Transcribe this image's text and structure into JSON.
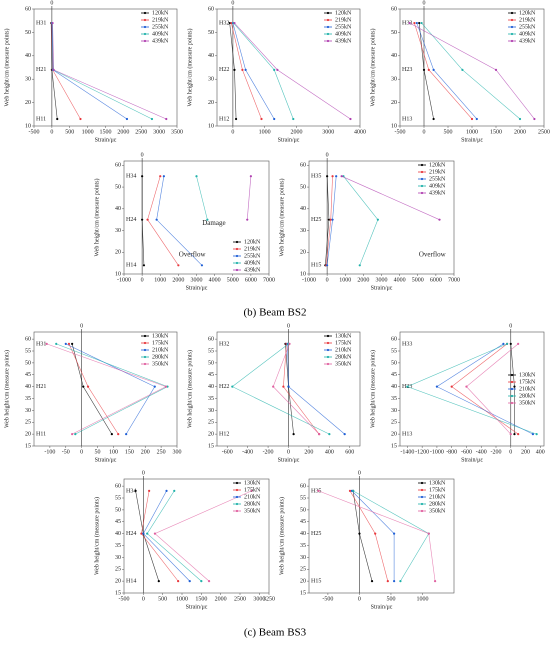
{
  "captions": [
    "(b) Beam BS2",
    "(c) Beam BS3"
  ],
  "chart_data": [
    {
      "type": "line",
      "xlabel": "Strain/με",
      "ylabel": "Web height/cm (measure points)",
      "xlim": [
        -500,
        3500
      ],
      "xticks": [
        -500,
        0,
        500,
        1000,
        1500,
        2000,
        2500,
        3000,
        3500
      ],
      "ylim": [
        10,
        60
      ],
      "yticks": [
        10,
        20,
        30,
        40,
        50,
        60
      ],
      "zero_line": {
        "value": 0,
        "label": "0"
      },
      "y": [
        13,
        34,
        54
      ],
      "point_labels": [
        "H11",
        "H21",
        "H31"
      ],
      "legend": "upper right",
      "annotations": [],
      "series": [
        {
          "name": "120kN",
          "color": "#000000",
          "x": [
            150,
            0,
            -20
          ]
        },
        {
          "name": "219kN",
          "color": "#e8383d",
          "x": [
            800,
            20,
            -10
          ]
        },
        {
          "name": "255kN",
          "color": "#1f5fd6",
          "x": [
            2100,
            30,
            0
          ]
        },
        {
          "name": "409kN",
          "color": "#20b2aa",
          "x": [
            2800,
            40,
            10
          ]
        },
        {
          "name": "439kN",
          "color": "#b040b0",
          "x": [
            3200,
            50,
            20
          ]
        }
      ]
    },
    {
      "type": "line",
      "xlabel": "Strain/με",
      "ylabel": "Web height/cm (measure points)",
      "xlim": [
        -500,
        4000
      ],
      "xticks": [
        0,
        1000,
        2000,
        3000,
        4000
      ],
      "ylim": [
        10,
        60
      ],
      "yticks": [
        10,
        20,
        30,
        40,
        50,
        60
      ],
      "zero_line": {
        "value": 0,
        "label": "0"
      },
      "y": [
        13,
        34,
        54
      ],
      "point_labels": [
        "H12",
        "H22",
        "H32"
      ],
      "legend": "upper right",
      "annotations": [],
      "series": [
        {
          "name": "120kN",
          "color": "#000000",
          "x": [
            100,
            50,
            -100
          ]
        },
        {
          "name": "219kN",
          "color": "#e8383d",
          "x": [
            900,
            300,
            -50
          ]
        },
        {
          "name": "255kN",
          "color": "#1f5fd6",
          "x": [
            1300,
            400,
            0
          ]
        },
        {
          "name": "409kN",
          "color": "#20b2aa",
          "x": [
            1900,
            1300,
            20
          ]
        },
        {
          "name": "439kN",
          "color": "#b040b0",
          "x": [
            3700,
            1400,
            50
          ]
        }
      ]
    },
    {
      "type": "line",
      "xlabel": "Strain/με",
      "ylabel": "Web height/cm (measure points)",
      "xlim": [
        -500,
        2500
      ],
      "xticks": [
        -500,
        0,
        500,
        1000,
        1500,
        2000,
        2500
      ],
      "ylim": [
        10,
        60
      ],
      "yticks": [
        10,
        20,
        30,
        40,
        50,
        60
      ],
      "zero_line": {
        "value": 0,
        "label": "0"
      },
      "y": [
        13,
        34,
        54
      ],
      "point_labels": [
        "H13",
        "H23",
        "H33"
      ],
      "legend": "upper right",
      "annotations": [],
      "series": [
        {
          "name": "120kN",
          "color": "#000000",
          "x": [
            200,
            0,
            -100
          ]
        },
        {
          "name": "219kN",
          "color": "#e8383d",
          "x": [
            1000,
            100,
            -200
          ]
        },
        {
          "name": "255kN",
          "color": "#1f5fd6",
          "x": [
            1100,
            200,
            -150
          ]
        },
        {
          "name": "409kN",
          "color": "#20b2aa",
          "x": [
            2000,
            800,
            -50
          ]
        },
        {
          "name": "439kN",
          "color": "#b040b0",
          "x": [
            2300,
            1500,
            -300
          ]
        }
      ]
    },
    {
      "type": "line",
      "xlabel": "Strain/με",
      "ylabel": "Web height/cm (measure points)",
      "xlim": [
        -1000,
        7000
      ],
      "xticks": [
        -1000,
        0,
        1000,
        2000,
        3000,
        4000,
        5000,
        6000,
        7000
      ],
      "ylim": [
        10,
        62
      ],
      "yticks": [
        10,
        20,
        30,
        40,
        50,
        60
      ],
      "zero_line": {
        "value": 0,
        "label": "0"
      },
      "y": [
        14,
        35,
        55
      ],
      "point_labels": [
        "H14",
        "H24",
        "H34"
      ],
      "legend": "lower right",
      "annotations": [
        "Damage",
        "Overflow"
      ],
      "series": [
        {
          "name": "120kN",
          "color": "#000000",
          "x": [
            100,
            0,
            0
          ]
        },
        {
          "name": "219kN",
          "color": "#e8383d",
          "x": [
            2000,
            300,
            1000
          ]
        },
        {
          "name": "255kN",
          "color": "#1f5fd6",
          "x": [
            3300,
            800,
            1200
          ]
        },
        {
          "name": "409kN",
          "color": "#20b2aa",
          "x": [
            null,
            3600,
            3000
          ]
        },
        {
          "name": "439kN",
          "color": "#b040b0",
          "x": [
            null,
            5800,
            6000
          ]
        }
      ]
    },
    {
      "type": "line",
      "xlabel": "Strain/με",
      "ylabel": "Web height/cm (measure points)",
      "xlim": [
        -1000,
        7000
      ],
      "xticks": [
        -1000,
        0,
        1000,
        2000,
        3000,
        4000,
        5000,
        6000,
        7000
      ],
      "ylim": [
        10,
        62
      ],
      "yticks": [
        10,
        20,
        30,
        40,
        50,
        60
      ],
      "zero_line": {
        "value": 0,
        "label": "0"
      },
      "y": [
        14,
        35,
        55
      ],
      "point_labels": [
        "H15",
        "H25",
        "H35"
      ],
      "legend": "upper right",
      "annotations": [
        "Overflow"
      ],
      "series": [
        {
          "name": "120kN",
          "color": "#000000",
          "x": [
            -100,
            100,
            0
          ]
        },
        {
          "name": "219kN",
          "color": "#e8383d",
          "x": [
            -50,
            200,
            300
          ]
        },
        {
          "name": "255kN",
          "color": "#1f5fd6",
          "x": [
            0,
            300,
            500
          ]
        },
        {
          "name": "409kN",
          "color": "#20b2aa",
          "x": [
            1800,
            2800,
            900
          ]
        },
        {
          "name": "439kN",
          "color": "#b040b0",
          "x": [
            null,
            6200,
            800
          ]
        }
      ]
    },
    {
      "type": "line",
      "xlabel": "Strain/με",
      "ylabel": "Web height/cm (measure points)",
      "xlim": [
        -150,
        300
      ],
      "xticks": [
        -100,
        -50,
        0,
        50,
        100,
        150,
        200,
        250,
        300
      ],
      "ylim": [
        15,
        63
      ],
      "yticks": [
        15,
        20,
        25,
        30,
        35,
        40,
        45,
        50,
        55,
        60
      ],
      "zero_line": {
        "value": 0,
        "label": "0"
      },
      "y": [
        20,
        40,
        58
      ],
      "point_labels": [
        "H11",
        "H21",
        "H31"
      ],
      "legend": "upper right",
      "annotations": [],
      "series": [
        {
          "name": "130kN",
          "color": "#000000",
          "x": [
            95,
            5,
            -30
          ]
        },
        {
          "name": "175kN",
          "color": "#e8383d",
          "x": [
            115,
            20,
            -40
          ]
        },
        {
          "name": "210kN",
          "color": "#1f5fd6",
          "x": [
            140,
            230,
            -50
          ]
        },
        {
          "name": "280kN",
          "color": "#20b2aa",
          "x": [
            -20,
            270,
            -80
          ]
        },
        {
          "name": "350kN",
          "color": "#e060a0",
          "x": [
            -30,
            265,
            -110
          ]
        }
      ]
    },
    {
      "type": "line",
      "xlabel": "Strain/με",
      "ylabel": "Web height/cm (measure points)",
      "xlim": [
        -700,
        700
      ],
      "xticks": [
        -600,
        -400,
        -200,
        0,
        200,
        400,
        600
      ],
      "ylim": [
        15,
        63
      ],
      "yticks": [
        15,
        20,
        25,
        30,
        35,
        40,
        45,
        50,
        55,
        60
      ],
      "zero_line": {
        "value": 0,
        "label": "0"
      },
      "y": [
        20,
        40,
        58
      ],
      "point_labels": [
        "H12",
        "H22",
        "H32"
      ],
      "legend": "upper right",
      "annotations": [],
      "series": [
        {
          "name": "130kN",
          "color": "#000000",
          "x": [
            50,
            0,
            -30
          ]
        },
        {
          "name": "175kN",
          "color": "#e8383d",
          "x": [
            300,
            -50,
            -20
          ]
        },
        {
          "name": "210kN",
          "color": "#1f5fd6",
          "x": [
            550,
            0,
            -10
          ]
        },
        {
          "name": "280kN",
          "color": "#20b2aa",
          "x": [
            400,
            -550,
            0
          ]
        },
        {
          "name": "350kN",
          "color": "#e060a0",
          "x": [
            300,
            -150,
            10
          ]
        }
      ]
    },
    {
      "type": "line",
      "xlabel": "Strain/με",
      "ylabel": "Web height/cm (measure points)",
      "xlim": [
        -1500,
        450
      ],
      "xticks": [
        -1400,
        -1200,
        -1000,
        -800,
        -600,
        -400,
        -200,
        0,
        200,
        400
      ],
      "ylim": [
        15,
        63
      ],
      "yticks": [
        15,
        20,
        25,
        30,
        35,
        40,
        45,
        50,
        55,
        60
      ],
      "zero_line": {
        "value": 0,
        "label": "0"
      },
      "y": [
        20,
        40,
        58
      ],
      "point_labels": [
        "H13",
        "H23",
        "H33"
      ],
      "legend": "center right",
      "annotations": [],
      "series": [
        {
          "name": "130kN",
          "color": "#000000",
          "x": [
            50,
            50,
            0
          ]
        },
        {
          "name": "175kN",
          "color": "#e8383d",
          "x": [
            100,
            -800,
            -50
          ]
        },
        {
          "name": "210kN",
          "color": "#1f5fd6",
          "x": [
            300,
            -1000,
            -100
          ]
        },
        {
          "name": "280kN",
          "color": "#20b2aa",
          "x": [
            350,
            -1400,
            -50
          ]
        },
        {
          "name": "350kN",
          "color": "#e060a0",
          "x": [
            0,
            -600,
            100
          ]
        }
      ]
    },
    {
      "type": "line",
      "xlabel": "Strain/με",
      "ylabel": "Web height/cm (measure points)",
      "xlim": [
        -500,
        3250
      ],
      "xticks": [
        -500,
        0,
        500,
        1000,
        1500,
        2000,
        2500,
        3000,
        3250
      ],
      "ylim": [
        15,
        63
      ],
      "yticks": [
        15,
        20,
        25,
        30,
        35,
        40,
        45,
        50,
        55,
        60
      ],
      "zero_line": {
        "value": 0,
        "label": "0"
      },
      "y": [
        20,
        40,
        58
      ],
      "point_labels": [
        "H14",
        "H24",
        "H34"
      ],
      "legend": "upper right",
      "annotations": [],
      "series": [
        {
          "name": "130kN",
          "color": "#000000",
          "x": [
            400,
            0,
            -200
          ]
        },
        {
          "name": "175kN",
          "color": "#e8383d",
          "x": [
            900,
            -50,
            150
          ]
        },
        {
          "name": "210kN",
          "color": "#1f5fd6",
          "x": [
            1200,
            0,
            600
          ]
        },
        {
          "name": "280kN",
          "color": "#20b2aa",
          "x": [
            1500,
            100,
            800
          ]
        },
        {
          "name": "350kN",
          "color": "#e060a0",
          "x": [
            1700,
            300,
            2800
          ]
        }
      ]
    },
    {
      "type": "line",
      "xlabel": "Strain/με",
      "ylabel": "Web height/cm (measure points)",
      "xlim": [
        -800,
        1500
      ],
      "xticks": [
        -500,
        0,
        500,
        1000
      ],
      "ylim": [
        15,
        63
      ],
      "yticks": [
        15,
        20,
        25,
        30,
        35,
        40,
        45,
        50,
        55,
        60
      ],
      "zero_line": {
        "value": 0,
        "label": "0"
      },
      "y": [
        20,
        40,
        58
      ],
      "point_labels": [
        "H15",
        "H25",
        "H35"
      ],
      "legend": "upper right",
      "annotations": [],
      "series": [
        {
          "name": "130kN",
          "color": "#000000",
          "x": [
            200,
            0,
            -100
          ]
        },
        {
          "name": "175kN",
          "color": "#e8383d",
          "x": [
            450,
            250,
            -150
          ]
        },
        {
          "name": "210kN",
          "color": "#1f5fd6",
          "x": [
            550,
            550,
            -120
          ]
        },
        {
          "name": "280kN",
          "color": "#20b2aa",
          "x": [
            650,
            1100,
            -100
          ]
        },
        {
          "name": "350kN",
          "color": "#e060a0",
          "x": [
            1200,
            1100,
            -650
          ]
        }
      ]
    }
  ]
}
